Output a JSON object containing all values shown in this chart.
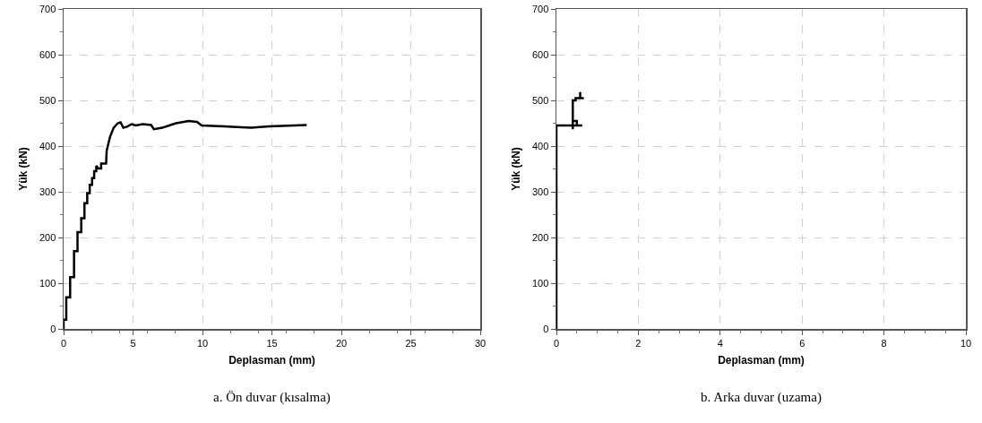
{
  "chart_data": [
    {
      "type": "line",
      "xlabel": "Deplasman (mm)",
      "ylabel": "Yük (kN)",
      "annotations": [
        "a. Ön duvar (kısalma)"
      ],
      "xlim": [
        0,
        30
      ],
      "xticks": [
        0,
        5,
        10,
        15,
        20,
        25,
        30
      ],
      "ylim": [
        0,
        700
      ],
      "yticks": [
        0,
        100,
        200,
        300,
        400,
        500,
        600,
        700
      ],
      "grid": true,
      "marker": "none",
      "line_style": "solid",
      "series": [
        {
          "color": "#000000",
          "x": [
            0,
            0,
            0.19,
            0.19,
            0.47,
            0.47,
            0.75,
            0.75,
            1.0,
            1.0,
            1.27,
            1.27,
            1.5,
            1.5,
            1.7,
            1.7,
            1.88,
            1.88,
            2.05,
            2.05,
            2.2,
            2.2,
            2.35,
            2.35,
            2.5,
            2.7,
            2.7,
            3.06,
            3.1,
            3.34,
            3.6,
            3.9,
            4.1,
            4.3,
            4.6,
            4.9,
            5.2,
            5.7,
            6.3,
            6.5,
            7.1,
            7.8,
            8.1,
            9.0,
            9.6,
            9.94,
            11.55,
            13.5,
            14.8,
            17.5
          ],
          "values": [
            0,
            20,
            20,
            69,
            69,
            113,
            113,
            170,
            170,
            212,
            212,
            242,
            242,
            275,
            275,
            297,
            297,
            315,
            315,
            330,
            330,
            345,
            345,
            357,
            351,
            351,
            362,
            362,
            390,
            420,
            440,
            450,
            452,
            440,
            443,
            448,
            445,
            448,
            446,
            437,
            440,
            447,
            450,
            455,
            453,
            445,
            443,
            440,
            443,
            446
          ]
        }
      ]
    },
    {
      "type": "line",
      "xlabel": "Deplasman (mm)",
      "ylabel": "Yük (kN)",
      "annotations": [
        "b. Arka duvar (uzama)"
      ],
      "xlim": [
        0,
        10
      ],
      "xticks": [
        0,
        2,
        4,
        6,
        8,
        10
      ],
      "ylim": [
        0,
        700
      ],
      "yticks": [
        0,
        100,
        200,
        300,
        400,
        500,
        600,
        700
      ],
      "grid": true,
      "marker": "none",
      "line_style": "solid",
      "series": [
        {
          "color": "#000000",
          "x": [
            0,
            0,
            0.63,
            0.5,
            0.5,
            0.4,
            0.4,
            0.4,
            0.47,
            0.47,
            0.58,
            0.58,
            0.58,
            0.67
          ],
          "values": [
            0,
            445,
            445,
            445,
            455,
            455,
            437,
            500,
            500,
            505,
            505,
            518,
            505,
            505
          ]
        }
      ]
    }
  ]
}
